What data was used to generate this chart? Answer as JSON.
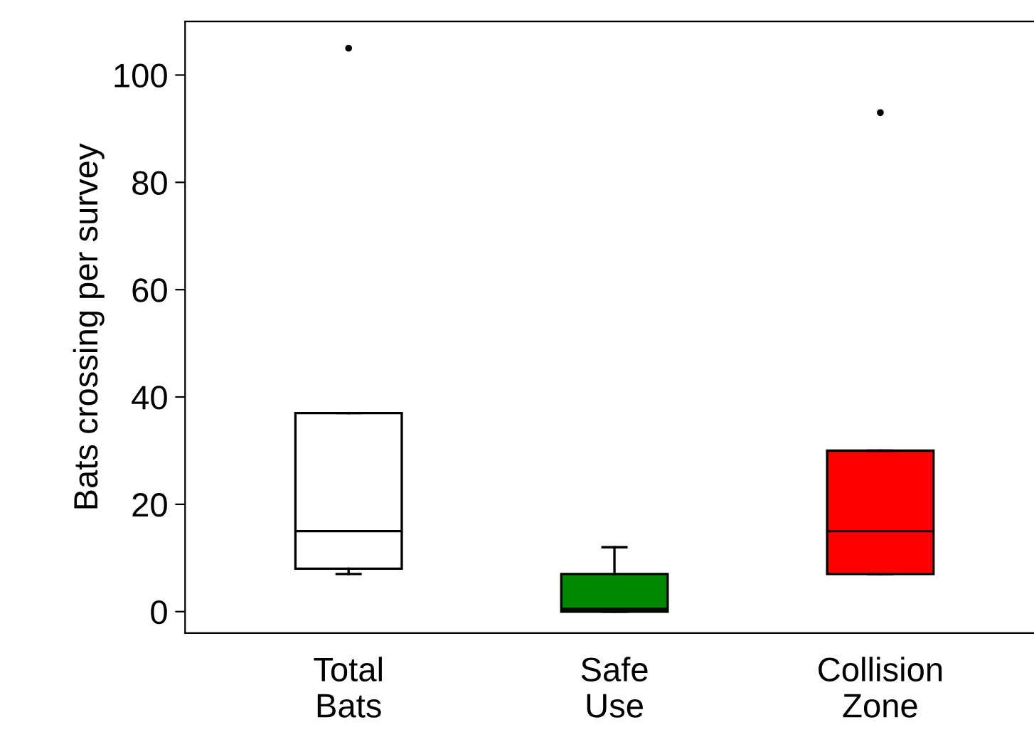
{
  "chart_data": {
    "type": "box",
    "ylabel": "Bats crossing per survey",
    "categories": [
      "Total\nBats",
      "Safe\nUse",
      "Collision\nZone"
    ],
    "colors": [
      "#ffffff",
      "#008800",
      "#ff0000"
    ],
    "boxes": [
      {
        "low": 7,
        "q1": 8,
        "median": 15,
        "q3": 37,
        "high": 37,
        "outliers": [
          105
        ]
      },
      {
        "low": 0,
        "q1": 0,
        "median": 0.5,
        "q3": 7,
        "high": 12
      },
      {
        "low": 7,
        "q1": 7,
        "median": 15,
        "q3": 30,
        "high": 30,
        "outliers": [
          93
        ]
      }
    ],
    "ylim": [
      -4,
      110
    ],
    "yticks": [
      0,
      20,
      40,
      60,
      80,
      100
    ],
    "grid": false
  }
}
